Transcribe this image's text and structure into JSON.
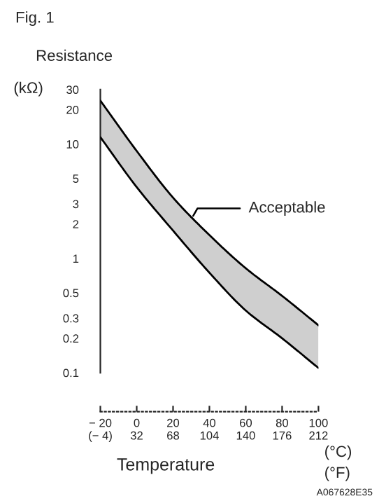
{
  "chart_data": {
    "type": "line",
    "title": "Fig. 1",
    "ylabel": "Resistance",
    "xlabel": "Temperature",
    "x": [
      -20,
      0,
      20,
      40,
      60,
      80,
      100
    ],
    "series": [
      {
        "color": "#000000",
        "values": [
          24,
          8.7,
          3.4,
          1.6,
          0.82,
          0.47,
          0.26
        ],
        "lower": [
          11.5,
          4.2,
          1.75,
          0.75,
          0.35,
          0.2,
          0.11
        ],
        "upper": [
          24,
          8.7,
          3.4,
          1.6,
          0.82,
          0.47,
          0.26
        ]
      },
      {
        "color": "#000000",
        "values": [
          11.5,
          4.2,
          1.75,
          0.75,
          0.35,
          0.2,
          0.11
        ]
      }
    ],
    "log": "y",
    "ylim": [
      0.1,
      30
    ],
    "yticks": [
      0.1,
      0.2,
      0.3,
      0.5,
      1,
      2,
      3,
      5,
      10,
      20,
      30
    ],
    "xlim": [
      -20,
      100
    ],
    "xticks": [
      {
        "value": -20,
        "label": "− 20"
      },
      0,
      20,
      40,
      60,
      80,
      100
    ],
    "x2lim": [
      -4,
      212
    ],
    "x2ticks": [
      {
        "value": -4,
        "label": "(− 4)"
      },
      32,
      68,
      104,
      140,
      176,
      212
    ],
    "annotations": [
      {
        "text": "Acceptable",
        "x": 30,
        "y": 2.2
      },
      "(kΩ)",
      "(°C)",
      "(°F)",
      "A067628E35"
    ],
    "grid": false,
    "legend": false,
    "marker": "none",
    "line_style": "solid"
  }
}
